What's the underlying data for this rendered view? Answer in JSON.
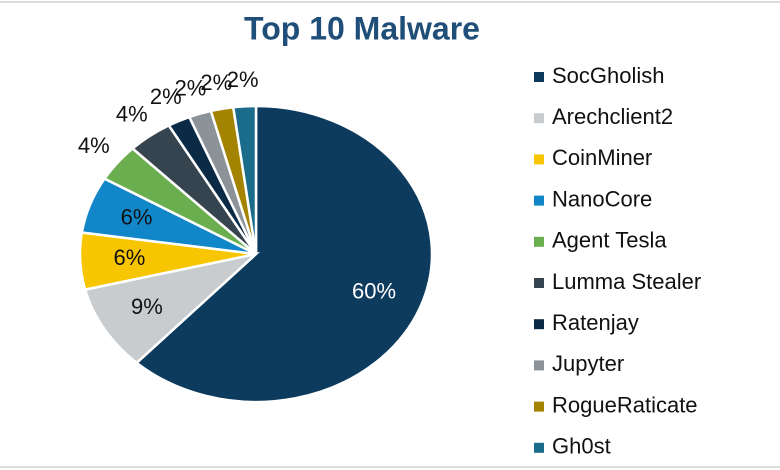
{
  "chart_data": {
    "type": "pie",
    "title": "Top 10 Malware",
    "categories": [
      "SocGholish",
      "Arechclient2",
      "CoinMiner",
      "NanoCore",
      "Agent Tesla",
      "Lumma Stealer",
      "Ratenjay",
      "Jupyter",
      "RogueRaticate",
      "Gh0st"
    ],
    "values": [
      60,
      9,
      6,
      6,
      4,
      4,
      2,
      2,
      2,
      2
    ],
    "value_labels": [
      "60%",
      "9%",
      "6%",
      "6%",
      "4%",
      "4%",
      "2%",
      "2%",
      "2%",
      "2%"
    ],
    "colors": [
      "#0d3b5e",
      "#c8cccf",
      "#f7c600",
      "#1187c9",
      "#6aae4f",
      "#36444f",
      "#0a2a45",
      "#8b9399",
      "#a38300",
      "#1b6b8b"
    ],
    "legend": "right"
  }
}
